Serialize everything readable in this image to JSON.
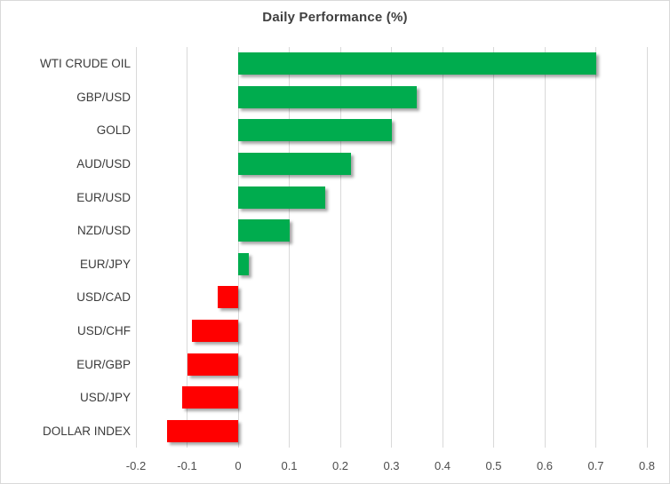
{
  "chart_data": {
    "type": "bar",
    "orientation": "horizontal",
    "title": "Daily Performance (%)",
    "categories": [
      "WTI CRUDE OIL",
      "GBP/USD",
      "GOLD",
      "AUD/USD",
      "EUR/USD",
      "NZD/USD",
      "EUR/JPY",
      "USD/CAD",
      "USD/CHF",
      "EUR/GBP",
      "USD/JPY",
      "DOLLAR INDEX"
    ],
    "values": [
      0.7,
      0.35,
      0.3,
      0.22,
      0.17,
      0.1,
      0.02,
      -0.04,
      -0.09,
      -0.1,
      -0.11,
      -0.14
    ],
    "x_ticks": [
      -0.2,
      -0.1,
      0,
      0.1,
      0.2,
      0.3,
      0.4,
      0.5,
      0.6,
      0.7,
      0.8
    ],
    "xlim": [
      -0.2,
      0.8
    ],
    "xlabel": "",
    "ylabel": "",
    "grid": true,
    "legend": "none",
    "colors": {
      "positive_bar": "#00AC4E",
      "negative_bar": "#FF0000",
      "gridline": "#D9D9D9",
      "title_text": "#404040",
      "category_text": "#3B3B3B",
      "tick_text": "#4D4D4D",
      "background": "#FFFFFF",
      "chart_border": "#D9D9D9"
    }
  }
}
